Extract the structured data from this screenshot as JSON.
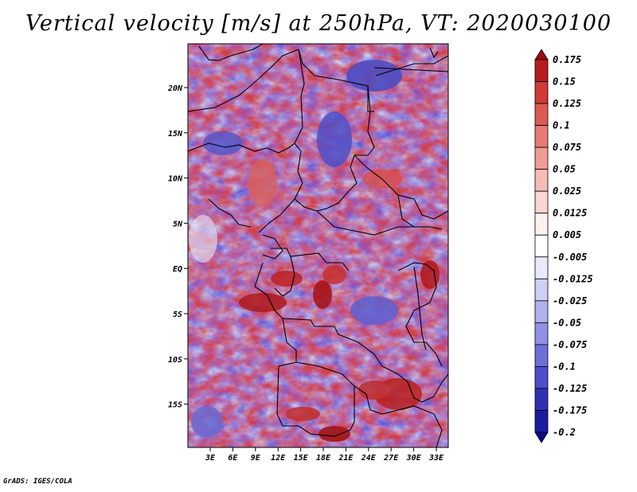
{
  "title": "Vertical velocity [m/s] at 250hPa, VT: 2020030100",
  "credit": "GrADS: IGES/COLA",
  "map": {
    "lat_ticks": [
      "20N",
      "15N",
      "10N",
      "5N",
      "EQ",
      "5S",
      "10S",
      "15S"
    ],
    "lon_ticks": [
      "3E",
      "6E",
      "9E",
      "12E",
      "15E",
      "18E",
      "21E",
      "24E",
      "27E",
      "30E",
      "33E"
    ]
  },
  "colorbar": {
    "labels": [
      "0.175",
      "0.15",
      "0.125",
      "0.1",
      "0.075",
      "0.05",
      "0.025",
      "0.0125",
      "0.005",
      "-0.005",
      "-0.0125",
      "-0.025",
      "-0.05",
      "-0.075",
      "-0.1",
      "-0.125",
      "-0.175",
      "-0.2"
    ],
    "colors": [
      "#9b0a12",
      "#b81c1e",
      "#cf3a36",
      "#dd5a52",
      "#e57b73",
      "#ee9d95",
      "#f5bcb6",
      "#f9d6d2",
      "#fdf0ee",
      "#ffffff",
      "#e9e9fb",
      "#cfcff5",
      "#b1b1ee",
      "#9090e4",
      "#6f6fd8",
      "#4e4ec8",
      "#3030b2",
      "#1c1ca0",
      "#0b0b8a"
    ]
  }
}
